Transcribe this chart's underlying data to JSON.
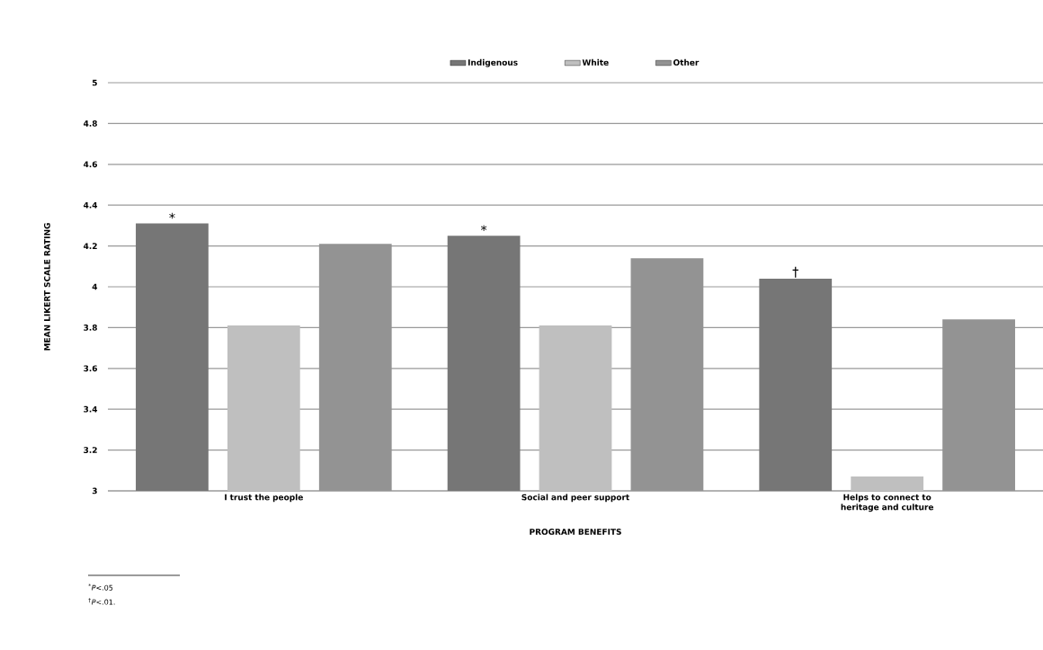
{
  "chart_data": {
    "type": "bar",
    "categories": [
      "I trust the people",
      "Social and peer support",
      "Helps to connect to heritage and culture"
    ],
    "series": [
      {
        "name": "Indigenous",
        "color": "#767676",
        "values": [
          4.31,
          4.25,
          4.04
        ]
      },
      {
        "name": "White",
        "color": "#bfbfbf",
        "values": [
          3.81,
          3.81,
          3.07
        ]
      },
      {
        "name": "Other",
        "color": "#939393",
        "values": [
          4.21,
          4.14,
          3.84
        ]
      }
    ],
    "xlabel": "PROGRAM BENEFITS",
    "ylabel": "MEAN LIKERT SCALE RATING",
    "ylim": [
      3,
      5
    ],
    "yticks": [
      3,
      3.2,
      3.4,
      3.6,
      3.8,
      4,
      4.2,
      4.4,
      4.6,
      4.8,
      5
    ],
    "grid": "y",
    "legend": "top",
    "annotations": [
      "*",
      "*",
      "†",
      "$^{*}$*P*<.05",
      "$^{†}$*P*<.01."
    ]
  }
}
